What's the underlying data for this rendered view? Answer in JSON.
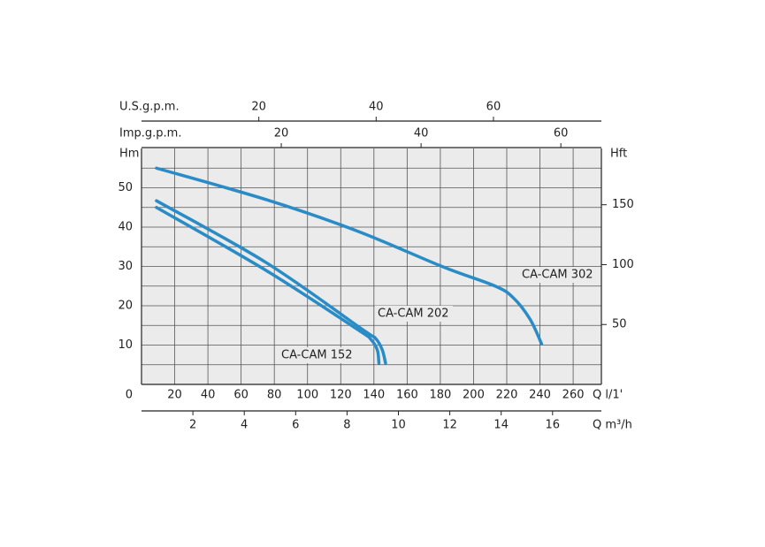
{
  "chart_data": {
    "type": "line",
    "xlabel": "Q l/1'",
    "xlim": [
      0,
      277
    ],
    "xticks": [
      0,
      20,
      40,
      60,
      80,
      100,
      120,
      140,
      160,
      180,
      200,
      220,
      240,
      260
    ],
    "ylabel": "Hm",
    "ylim": [
      0,
      60
    ],
    "yticks": [
      10,
      20,
      30,
      40,
      50
    ],
    "y_minor_grid": [
      5,
      15,
      25,
      35,
      45,
      55
    ],
    "y2label": "Hft",
    "y2lim": [
      0,
      197
    ],
    "y2ticks": [
      50,
      100,
      150
    ],
    "grid": true,
    "x_axes": [
      {
        "label": "Q m³/h",
        "position": "bottom",
        "lim": [
          0,
          17.9
        ],
        "ticks": [
          2,
          4,
          6,
          8,
          10,
          12,
          14,
          16
        ]
      },
      {
        "label": "Imp.g.p.m.",
        "position": "top",
        "lim": [
          0,
          65.8
        ],
        "ticks": [
          20,
          40,
          60
        ]
      },
      {
        "label": "U.S.g.p.m.",
        "position": "top",
        "lim": [
          0,
          78.4
        ],
        "ticks": [
          20,
          40,
          60
        ]
      }
    ],
    "series": [
      {
        "name": "CA-CAM 302",
        "color": "#2a8cc6",
        "x": [
          9,
          75,
          130,
          181,
          213,
          224,
          234,
          241
        ],
        "values": [
          55,
          47,
          39,
          30,
          25,
          22,
          16.6,
          10.3
        ]
      },
      {
        "name": "CA-CAM 202",
        "color": "#2a8cc6",
        "x": [
          9,
          75,
          133,
          141,
          145,
          147
        ],
        "values": [
          46.7,
          31,
          14,
          11.7,
          8.8,
          5.4
        ]
      },
      {
        "name": "CA-CAM 152",
        "color": "#2a8cc6",
        "x": [
          9,
          75,
          130,
          138,
          142,
          143
        ],
        "values": [
          45,
          29,
          14,
          11.5,
          8.8,
          5.4
        ]
      }
    ]
  }
}
